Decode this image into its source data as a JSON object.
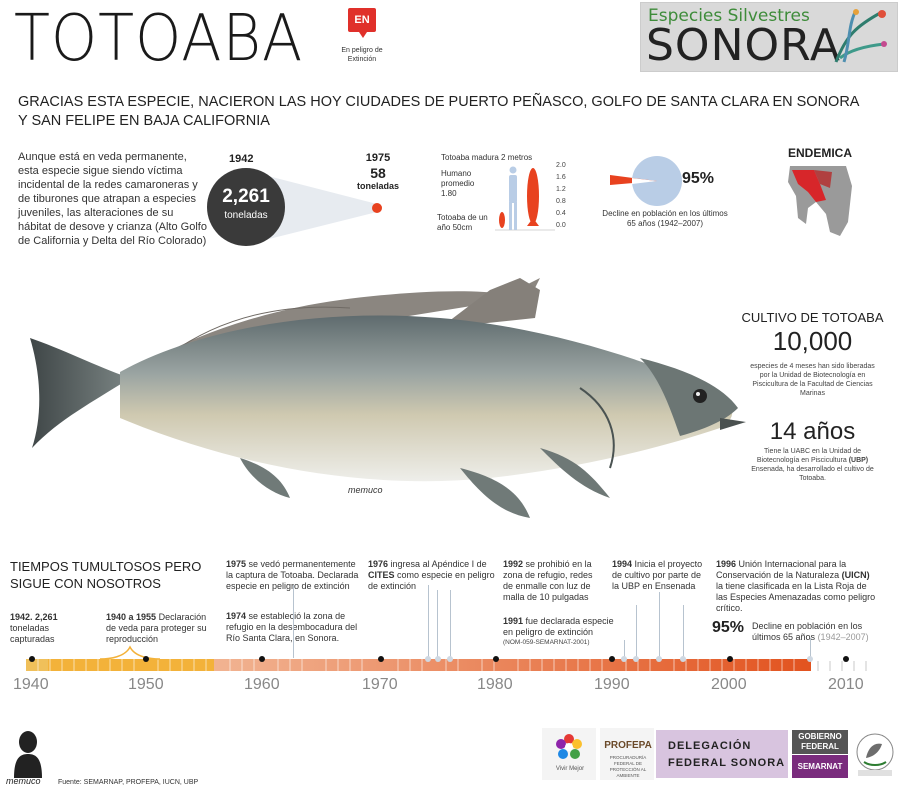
{
  "header": {
    "title": "TOTOABA",
    "badge": "EN",
    "badge_label": "En peligro de Extinción",
    "brand_top": "Especies Silvestres",
    "brand_big": "SONORA"
  },
  "headline": "GRACIAS ESTA ESPECIE, NACIERON LAS HOY CIUDADES DE PUERTO PEÑASCO, GOLFO DE SANTA CLARA EN SONORA Y SAN FELIPE EN BAJA CALIFORNIA",
  "intro": "Aunque está en veda permanente, esta especie sigue siendo víctima incidental de la redes camaroneras y de tiburones que atrapan a especies juveniles, las alteraciones de su hábitat de desove y crianza (Alto Golfo de California y Delta del Río Colorado)",
  "catch": {
    "year_a": "1942",
    "value_a": "2,261",
    "unit_a": "toneladas",
    "year_b": "1975",
    "value_b": "58",
    "unit_b": "toneladas"
  },
  "size": {
    "mature": "Totoaba madura 2 metros",
    "human": "Humano promedio 1.80",
    "young": "Totoaba de un año 50cm",
    "scale": [
      "2.0",
      "1.6",
      "1.2",
      "0.8",
      "0.4",
      "0.0"
    ]
  },
  "decline": {
    "percent": "95%",
    "caption": "Decline en población en los últimos 65 años (1942–2007)"
  },
  "endemic": "ENDEMICA",
  "cultivo": {
    "title": "CULTIVO DE TOTOABA",
    "count": "10,000",
    "count_text": "especies de 4 meses han sido liberadas por la Unidad de Biotecnología en Piscicultura de la Facultad de Ciencias Marinas",
    "years": "14 años",
    "years_text_a": "Tiene la UABC en la Unidad de Biotecnología en Piscicultura",
    "years_text_b": "(UBP)",
    "years_text_c": "Ensenada, ha desarrollado el cultivo de Totoaba."
  },
  "signature": "memuco",
  "timeline": {
    "heading": "TIEMPOS TUMULTOSOS PERO SIGUE CON NOSOTROS",
    "years": [
      "1940",
      "1950",
      "1960",
      "1970",
      "1980",
      "1990",
      "2000",
      "2010"
    ],
    "events": {
      "e1942_a": "1942.",
      "e1942_b": "2,261",
      "e1942_c": "toneladas capturadas",
      "e1940_a": "1940 a 1955",
      "e1940_b": "Declaración de veda para proteger su reproducción",
      "e1974_a": "1974",
      "e1974_b": "se estableció la zona de refugio en la desembocadura del Río Santa Clara, en Sonora.",
      "e1975_a": "1975",
      "e1975_b": "se vedó permanentemente la captura de Totoaba. Declarada especie en peligro de extinción",
      "e1976_a": "1976",
      "e1976_b": "ingresa al Apéndice I de",
      "e1976_c": "CITES",
      "e1976_d": "como especie en peligro de extinción",
      "e1992_a": "1992",
      "e1992_b": "se prohibió en la zona de refugio, redes de enmalle con luz de malla de 10 pulgadas",
      "e1991_a": "1991",
      "e1991_b": "fue declarada especie en peligro de extinción",
      "e1991_c": "(NOM-059-SEMARNAT-2001)",
      "e1994_a": "1994",
      "e1994_b": "Inicia el proyecto de cultivo por parte de la UBP en Ensenada",
      "e1996_a": "1996",
      "e1996_b": "Unión Internacional para la Conservación de la Naturaleza",
      "e1996_c": "(UICN)",
      "e1996_d": "la tiene clasificada en la Lista Roja de las Especies Amenazadas como peligro crítico.",
      "decline_pct": "95%",
      "decline_text": "Decline en población en los últimos 65 años",
      "decline_years": "(1942–2007)"
    }
  },
  "footer": {
    "source": "Fuente: SEMARNAP, PROFEPA, IUCN, UBP",
    "vivir": "Vivir Mejor",
    "profepa": "PROFEPA",
    "profepa_sub": "PROCURADURÍA FEDERAL DE PROTECCIÓN AL AMBIENTE",
    "deleg_a": "DELEGACIÓN",
    "deleg_b": "FEDERAL SONORA",
    "gob": "GOBIERNO FEDERAL",
    "semarnat": "SEMARNAT",
    "signature": "memuco"
  },
  "colors": {
    "accent": "#e8421f",
    "dark": "#3a3a3a",
    "timeline_start": "#f3b23a",
    "timeline_end": "#e2531f",
    "purple": "#7a2c7d"
  }
}
